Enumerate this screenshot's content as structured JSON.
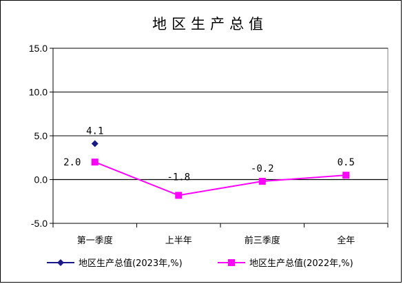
{
  "chart_data": {
    "type": "line",
    "title": "地区生产总值",
    "xlabel": "",
    "ylabel": "",
    "categories": [
      "第一季度",
      "上半年",
      "前三季度",
      "全年"
    ],
    "ylim": [
      -5.0,
      15.0
    ],
    "yticks": [
      "15.0",
      "10.0",
      "5.0",
      "0.0",
      "-5.0"
    ],
    "ytick_values": [
      15,
      10,
      5,
      0,
      -5
    ],
    "grid": true,
    "legend_position": "bottom",
    "series": [
      {
        "name": "地区生产总值(2023年,%)",
        "values": [
          4.1,
          null,
          null,
          null
        ],
        "labels": [
          "4.1",
          "",
          "",
          ""
        ],
        "color": "#1a1a8c",
        "marker": "diamond"
      },
      {
        "name": "地区生产总值(2022年,%)",
        "values": [
          2.0,
          -1.8,
          -0.2,
          0.5
        ],
        "labels": [
          "2.0",
          "-1.8",
          "-0.2",
          "0.5"
        ],
        "color": "#ff00ff",
        "marker": "square"
      }
    ]
  }
}
